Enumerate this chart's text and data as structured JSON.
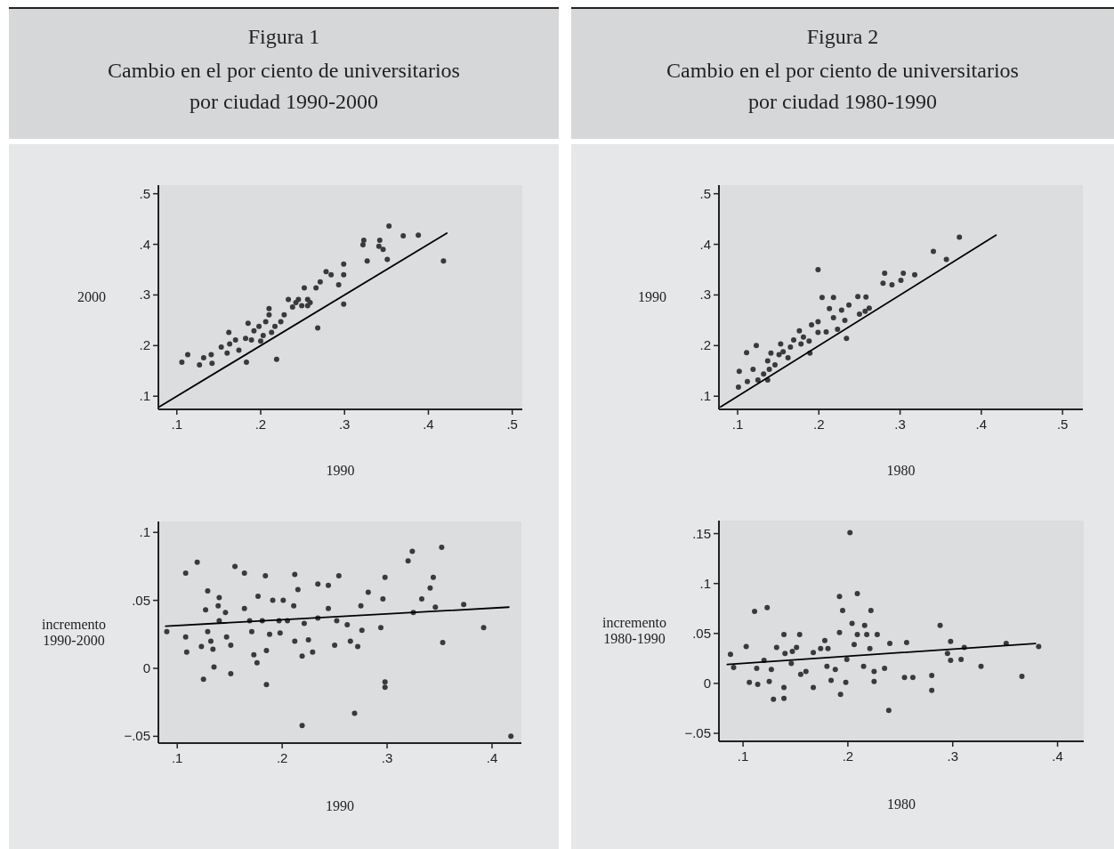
{
  "chart_data": [
    {
      "type": "scatter",
      "title": "Figura 1",
      "subtitle": "Cambio en el por ciento de universitarios por ciudad 1990-2000",
      "xlabel": "1990",
      "ylabel": "2000",
      "xlim": [
        0.078,
        0.512
      ],
      "ylim": [
        0.074,
        0.517
      ],
      "xticks": [
        {
          "value": 0.1,
          "label": ".1"
        },
        {
          "value": 0.2,
          "label": ".2"
        },
        {
          "value": 0.3,
          "label": ".3"
        },
        {
          "value": 0.4,
          "label": ".4"
        },
        {
          "value": 0.5,
          "label": ".5"
        }
      ],
      "yticks": [
        {
          "value": 0.1,
          "label": ".1"
        },
        {
          "value": 0.2,
          "label": ".2"
        },
        {
          "value": 0.3,
          "label": ".3"
        },
        {
          "value": 0.4,
          "label": ".4"
        },
        {
          "value": 0.5,
          "label": ".5"
        }
      ],
      "series": [
        {
          "marker": "circle",
          "color": "#3a3a3a",
          "x": [
            0.113,
            0.106,
            0.127,
            0.132,
            0.141,
            0.142,
            0.153,
            0.162,
            0.163,
            0.17,
            0.174,
            0.183,
            0.185,
            0.182,
            0.192,
            0.198,
            0.203,
            0.21,
            0.213,
            0.217,
            0.224,
            0.228,
            0.233,
            0.238,
            0.245,
            0.249,
            0.256,
            0.259,
            0.268,
            0.266,
            0.271,
            0.278,
            0.284,
            0.293,
            0.299,
            0.299,
            0.299,
            0.252,
            0.219,
            0.322,
            0.323,
            0.327,
            0.341,
            0.342,
            0.346,
            0.353,
            0.37,
            0.388,
            0.418,
            0.351,
            0.2,
            0.16,
            0.206,
            0.242,
            0.189,
            0.21,
            0.256
          ],
          "values": [
            0.182,
            0.167,
            0.162,
            0.176,
            0.182,
            0.165,
            0.197,
            0.226,
            0.203,
            0.211,
            0.191,
            0.167,
            0.244,
            0.214,
            0.229,
            0.238,
            0.22,
            0.261,
            0.226,
            0.238,
            0.247,
            0.261,
            0.291,
            0.276,
            0.291,
            0.279,
            0.291,
            0.285,
            0.235,
            0.314,
            0.326,
            0.346,
            0.34,
            0.32,
            0.361,
            0.34,
            0.282,
            0.314,
            0.173,
            0.399,
            0.408,
            0.367,
            0.396,
            0.408,
            0.39,
            0.436,
            0.417,
            0.418,
            0.367,
            0.37,
            0.209,
            0.185,
            0.247,
            0.285,
            0.211,
            0.273,
            0.279
          ]
        },
        {
          "type": "line",
          "marker": "none",
          "color": "#000000",
          "x": [
            0.078,
            0.422
          ],
          "values": [
            0.078,
            0.422
          ]
        }
      ]
    },
    {
      "type": "scatter",
      "xlabel": "1990",
      "ylabel": "incremento 1990-2000",
      "xlim": [
        0.082,
        0.428
      ],
      "ylim": [
        -0.055,
        0.108
      ],
      "xticks": [
        {
          "value": 0.1,
          "label": ".1"
        },
        {
          "value": 0.2,
          "label": ".2"
        },
        {
          "value": 0.3,
          "label": ".3"
        },
        {
          "value": 0.4,
          "label": ".4"
        }
      ],
      "yticks": [
        {
          "value": -0.05,
          "label": "−.05"
        },
        0,
        {
          "value": 0.05,
          "label": ".05"
        },
        {
          "value": 0.1,
          "label": ".1"
        }
      ],
      "series": [
        {
          "marker": "circle",
          "color": "#3a3a3a",
          "x": [
            0.09,
            0.108,
            0.119,
            0.108,
            0.109,
            0.123,
            0.125,
            0.127,
            0.129,
            0.129,
            0.132,
            0.134,
            0.135,
            0.139,
            0.14,
            0.14,
            0.146,
            0.147,
            0.151,
            0.151,
            0.155,
            0.164,
            0.164,
            0.169,
            0.171,
            0.173,
            0.176,
            0.177,
            0.181,
            0.184,
            0.185,
            0.185,
            0.188,
            0.191,
            0.197,
            0.198,
            0.201,
            0.205,
            0.211,
            0.212,
            0.212,
            0.215,
            0.219,
            0.219,
            0.221,
            0.225,
            0.234,
            0.229,
            0.234,
            0.244,
            0.244,
            0.25,
            0.252,
            0.254,
            0.262,
            0.265,
            0.269,
            0.272,
            0.275,
            0.276,
            0.282,
            0.294,
            0.296,
            0.298,
            0.298,
            0.298,
            0.32,
            0.324,
            0.325,
            0.333,
            0.341,
            0.344,
            0.346,
            0.352,
            0.353,
            0.373,
            0.392,
            0.418
          ],
          "values": [
            0.027,
            0.07,
            0.078,
            0.023,
            0.012,
            0.016,
            -0.008,
            0.043,
            0.057,
            0.027,
            0.02,
            0.014,
            0.001,
            0.046,
            0.052,
            0.035,
            0.041,
            0.023,
            -0.004,
            0.017,
            0.075,
            0.07,
            0.044,
            0.035,
            0.027,
            0.01,
            0.004,
            0.053,
            0.035,
            0.068,
            -0.012,
            0.013,
            0.025,
            0.05,
            0.035,
            0.026,
            0.05,
            0.035,
            0.046,
            0.069,
            0.02,
            0.058,
            -0.042,
            0.009,
            0.033,
            0.021,
            0.062,
            0.012,
            0.037,
            0.061,
            0.044,
            0.017,
            0.035,
            0.068,
            0.032,
            0.02,
            -0.033,
            0.016,
            0.046,
            0.028,
            0.056,
            0.03,
            0.051,
            0.067,
            -0.01,
            -0.014,
            0.079,
            0.086,
            0.041,
            0.051,
            0.059,
            0.067,
            0.045,
            0.089,
            0.019,
            0.047,
            0.03,
            -0.05
          ]
        },
        {
          "type": "line",
          "marker": "none",
          "color": "#000000",
          "x": [
            0.089,
            0.416
          ],
          "values": [
            0.031,
            0.045
          ]
        }
      ]
    },
    {
      "type": "scatter",
      "title": "Figura 2",
      "subtitle": "Cambio en el por ciento de universitarios por ciudad 1980-1990",
      "xlabel": "1980",
      "ylabel": "1990",
      "xlim": [
        0.077,
        0.525
      ],
      "ylim": [
        0.074,
        0.517
      ],
      "xticks": [
        {
          "value": 0.1,
          "label": ".1"
        },
        {
          "value": 0.2,
          "label": ".2"
        },
        {
          "value": 0.3,
          "label": ".3"
        },
        {
          "value": 0.4,
          "label": ".4"
        },
        {
          "value": 0.5,
          "label": ".5"
        }
      ],
      "yticks": [
        {
          "value": 0.1,
          "label": ".1"
        },
        {
          "value": 0.2,
          "label": ".2"
        },
        {
          "value": 0.3,
          "label": ".3"
        },
        {
          "value": 0.4,
          "label": ".4"
        },
        {
          "value": 0.5,
          "label": ".5"
        }
      ],
      "series": [
        {
          "marker": "circle",
          "color": "#3a3a3a",
          "x": [
            0.101,
            0.102,
            0.111,
            0.123,
            0.112,
            0.119,
            0.125,
            0.132,
            0.137,
            0.139,
            0.137,
            0.141,
            0.146,
            0.151,
            0.153,
            0.156,
            0.162,
            0.165,
            0.169,
            0.176,
            0.178,
            0.181,
            0.188,
            0.189,
            0.191,
            0.199,
            0.199,
            0.199,
            0.204,
            0.209,
            0.213,
            0.218,
            0.218,
            0.223,
            0.228,
            0.232,
            0.237,
            0.234,
            0.25,
            0.248,
            0.258,
            0.257,
            0.262,
            0.279,
            0.281,
            0.29,
            0.301,
            0.304,
            0.318,
            0.341,
            0.357,
            0.373
          ],
          "values": [
            0.118,
            0.149,
            0.186,
            0.2,
            0.129,
            0.153,
            0.132,
            0.144,
            0.132,
            0.153,
            0.17,
            0.185,
            0.162,
            0.182,
            0.203,
            0.188,
            0.176,
            0.197,
            0.211,
            0.229,
            0.203,
            0.217,
            0.209,
            0.185,
            0.241,
            0.247,
            0.226,
            0.35,
            0.295,
            0.227,
            0.273,
            0.255,
            0.295,
            0.232,
            0.27,
            0.25,
            0.28,
            0.214,
            0.262,
            0.297,
            0.296,
            0.268,
            0.274,
            0.323,
            0.343,
            0.32,
            0.329,
            0.343,
            0.34,
            0.386,
            0.37,
            0.414
          ]
        },
        {
          "type": "line",
          "marker": "none",
          "color": "#000000",
          "x": [
            0.079,
            0.418
          ],
          "values": [
            0.079,
            0.418
          ]
        }
      ]
    },
    {
      "type": "scatter",
      "xlabel": "1980",
      "ylabel": "incremento 1980-1990",
      "xlim": [
        0.077,
        0.425
      ],
      "ylim": [
        -0.058,
        0.163
      ],
      "xticks": [
        {
          "value": 0.1,
          "label": ".1"
        },
        {
          "value": 0.2,
          "label": ".2"
        },
        {
          "value": 0.3,
          "label": ".3"
        },
        {
          "value": 0.4,
          "label": ".4"
        }
      ],
      "yticks": [
        {
          "value": -0.05,
          "label": "−.05"
        },
        0,
        {
          "value": 0.05,
          "label": ".05"
        },
        {
          "value": 0.1,
          "label": ".1"
        },
        {
          "value": 0.15,
          "label": ".15"
        }
      ],
      "series": [
        {
          "marker": "circle",
          "color": "#3a3a3a",
          "x": [
            0.088,
            0.091,
            0.103,
            0.106,
            0.111,
            0.113,
            0.114,
            0.12,
            0.123,
            0.125,
            0.127,
            0.129,
            0.132,
            0.139,
            0.139,
            0.139,
            0.14,
            0.146,
            0.147,
            0.151,
            0.154,
            0.155,
            0.16,
            0.167,
            0.167,
            0.174,
            0.178,
            0.18,
            0.181,
            0.184,
            0.188,
            0.192,
            0.192,
            0.193,
            0.195,
            0.198,
            0.199,
            0.202,
            0.204,
            0.206,
            0.209,
            0.209,
            0.215,
            0.216,
            0.218,
            0.222,
            0.221,
            0.225,
            0.225,
            0.228,
            0.235,
            0.239,
            0.24,
            0.254,
            0.256,
            0.262,
            0.28,
            0.28,
            0.288,
            0.295,
            0.298,
            0.298,
            0.308,
            0.311,
            0.327,
            0.351,
            0.366,
            0.382
          ],
          "values": [
            0.029,
            0.016,
            0.037,
            0.001,
            0.072,
            0.015,
            -0.001,
            0.023,
            0.076,
            0.002,
            0.014,
            -0.016,
            0.036,
            0.049,
            -0.015,
            -0.004,
            0.03,
            0.02,
            0.032,
            0.036,
            0.049,
            0.009,
            0.012,
            0.031,
            -0.004,
            0.035,
            0.043,
            0.017,
            0.035,
            0.003,
            0.014,
            0.051,
            0.087,
            -0.011,
            0.073,
            0.001,
            0.024,
            0.151,
            0.06,
            0.039,
            0.09,
            0.049,
            0.017,
            0.058,
            0.049,
            0.073,
            0.035,
            0.002,
            0.012,
            0.049,
            0.015,
            -0.027,
            0.04,
            0.006,
            0.041,
            0.006,
            0.008,
            -0.007,
            0.058,
            0.03,
            0.042,
            0.023,
            0.024,
            0.036,
            0.017,
            0.04,
            0.007,
            0.037
          ]
        },
        {
          "type": "line",
          "marker": "none",
          "color": "#000000",
          "x": [
            0.085,
            0.379
          ],
          "values": [
            0.019,
            0.04
          ]
        }
      ]
    }
  ]
}
